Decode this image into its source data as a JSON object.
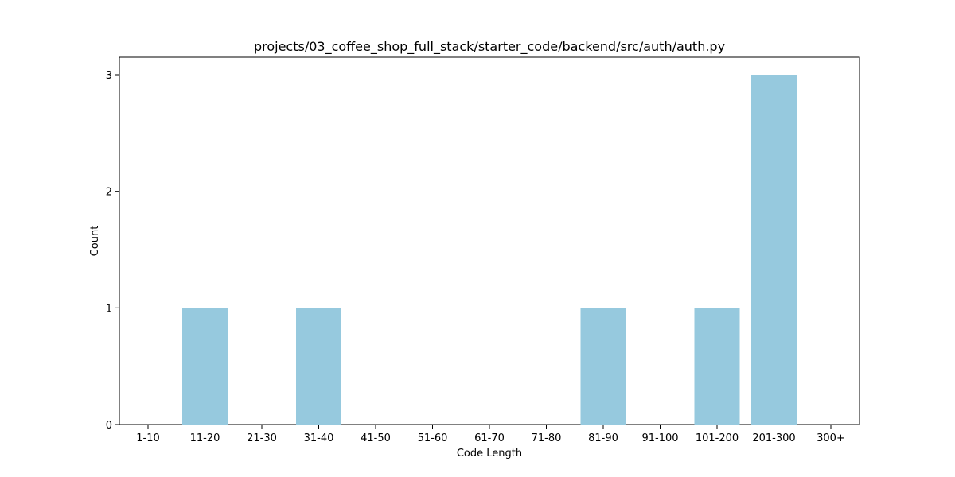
{
  "chart_data": {
    "type": "bar",
    "title": "projects/03_coffee_shop_full_stack/starter_code/backend/src/auth/auth.py",
    "xlabel": "Code Length",
    "ylabel": "Count",
    "categories": [
      "1-10",
      "11-20",
      "21-30",
      "31-40",
      "41-50",
      "51-60",
      "61-70",
      "71-80",
      "81-90",
      "91-100",
      "101-200",
      "201-300",
      "300+"
    ],
    "values": [
      0,
      1,
      0,
      1,
      0,
      0,
      0,
      0,
      1,
      0,
      1,
      3,
      0
    ],
    "yticks": [
      0,
      1,
      2,
      3
    ],
    "ylim": [
      0,
      3.15
    ],
    "grid": false,
    "bar_color": "#96c9de"
  }
}
